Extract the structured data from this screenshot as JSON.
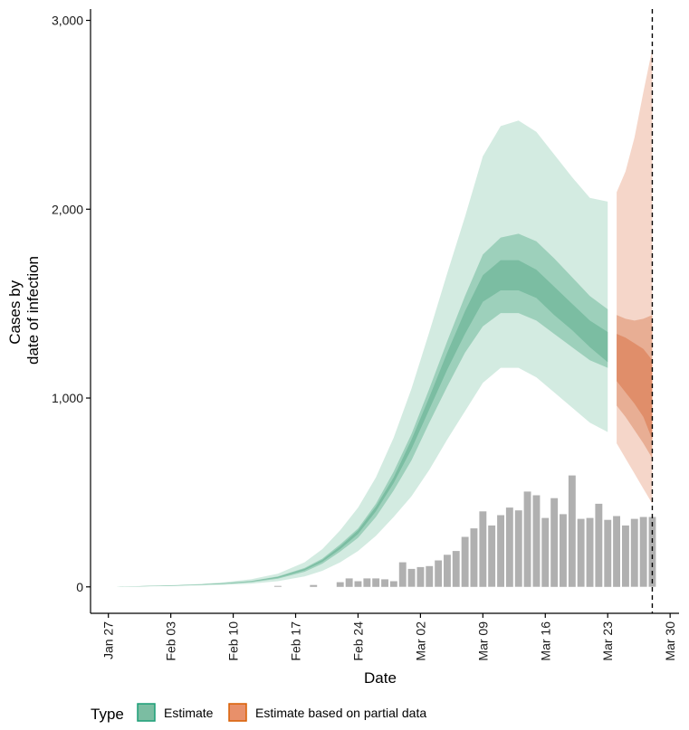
{
  "chart_data": {
    "type": "area",
    "xlabel": "Date",
    "ylabel_lines": [
      "Cases by",
      "date of infection"
    ],
    "x_domain": [
      "2020-01-25",
      "2020-03-31"
    ],
    "ylim": [
      -140,
      3060
    ],
    "y_ticks": [
      0,
      1000,
      2000,
      3000
    ],
    "y_tick_labels": [
      "0",
      "1,000",
      "2,000",
      "3,000"
    ],
    "x_ticks": [
      "2020-01-27",
      "2020-02-03",
      "2020-02-10",
      "2020-02-17",
      "2020-02-24",
      "2020-03-02",
      "2020-03-09",
      "2020-03-16",
      "2020-03-23",
      "2020-03-30"
    ],
    "x_tick_labels": [
      "Jan 27",
      "Feb 03",
      "Feb 10",
      "Feb 17",
      "Feb 24",
      "Mar 02",
      "Mar 09",
      "Mar 16",
      "Mar 23",
      "Mar 30"
    ],
    "vline_date": "2020-03-28",
    "colors": {
      "bars": "#b0b0b0",
      "estimate_outer": "#d3ebe1",
      "estimate_mid": "#9dd0bb",
      "estimate_inner": "#7bbda2",
      "estimate_legend_fill": "#7bbda2",
      "estimate_legend_border": "#1b9e77",
      "partial_outer": "#f5d6c9",
      "partial_mid": "#e8ae94",
      "partial_inner": "#e08e6a",
      "partial_legend_fill": "#e8906a",
      "partial_legend_border": "#d95f02"
    },
    "legend": {
      "title": "Type",
      "placement": "bottom",
      "items": [
        {
          "label": "Estimate",
          "key": "estimate"
        },
        {
          "label": "Estimate based on partial data",
          "key": "partial"
        }
      ]
    },
    "bars": {
      "dates": [
        "2020-02-15",
        "2020-02-19",
        "2020-02-22",
        "2020-02-23",
        "2020-02-24",
        "2020-02-25",
        "2020-02-26",
        "2020-02-27",
        "2020-02-28",
        "2020-02-29",
        "2020-03-01",
        "2020-03-02",
        "2020-03-03",
        "2020-03-04",
        "2020-03-05",
        "2020-03-06",
        "2020-03-07",
        "2020-03-08",
        "2020-03-09",
        "2020-03-10",
        "2020-03-11",
        "2020-03-12",
        "2020-03-13",
        "2020-03-14",
        "2020-03-15",
        "2020-03-16",
        "2020-03-17",
        "2020-03-18",
        "2020-03-19",
        "2020-03-20",
        "2020-03-21",
        "2020-03-22",
        "2020-03-23",
        "2020-03-24",
        "2020-03-25",
        "2020-03-26",
        "2020-03-27",
        "2020-03-28"
      ],
      "values": [
        5,
        10,
        25,
        45,
        30,
        45,
        45,
        40,
        30,
        130,
        95,
        105,
        110,
        140,
        170,
        190,
        265,
        310,
        400,
        325,
        380,
        420,
        405,
        505,
        485,
        365,
        470,
        385,
        590,
        360,
        365,
        440,
        355,
        375,
        325,
        360,
        370,
        370
      ]
    },
    "series": [
      {
        "name": "Estimate",
        "key": "estimate",
        "dates": [
          "2020-01-28",
          "2020-01-31",
          "2020-02-03",
          "2020-02-06",
          "2020-02-09",
          "2020-02-12",
          "2020-02-15",
          "2020-02-18",
          "2020-02-20",
          "2020-02-22",
          "2020-02-24",
          "2020-02-26",
          "2020-02-28",
          "2020-03-01",
          "2020-03-03",
          "2020-03-05",
          "2020-03-07",
          "2020-03-09",
          "2020-03-11",
          "2020-03-13",
          "2020-03-15",
          "2020-03-17",
          "2020-03-19",
          "2020-03-21",
          "2020-03-23"
        ],
        "outer_low": [
          0,
          2,
          4,
          7,
          11,
          17,
          30,
          55,
          85,
          130,
          190,
          270,
          370,
          480,
          620,
          780,
          930,
          1080,
          1160,
          1160,
          1110,
          1030,
          950,
          870,
          820
        ],
        "outer_high": [
          2,
          5,
          9,
          15,
          25,
          40,
          70,
          130,
          200,
          300,
          420,
          580,
          790,
          1050,
          1350,
          1660,
          1960,
          2280,
          2440,
          2470,
          2410,
          2290,
          2170,
          2060,
          2040
        ],
        "mid_low": [
          1,
          3,
          5,
          10,
          15,
          24,
          43,
          80,
          123,
          187,
          260,
          370,
          510,
          670,
          870,
          1060,
          1240,
          1380,
          1450,
          1450,
          1410,
          1340,
          1270,
          1200,
          1160
        ],
        "mid_high": [
          1,
          4,
          7,
          12,
          20,
          31,
          55,
          100,
          150,
          225,
          310,
          440,
          610,
          810,
          1050,
          1300,
          1540,
          1760,
          1850,
          1870,
          1830,
          1740,
          1640,
          1540,
          1470
        ],
        "inner_low": [
          1,
          3,
          6,
          11,
          17,
          28,
          48,
          88,
          133,
          200,
          280,
          400,
          550,
          730,
          940,
          1150,
          1340,
          1510,
          1570,
          1570,
          1530,
          1440,
          1360,
          1270,
          1190
        ],
        "inner_high": [
          1,
          4,
          7,
          12,
          19,
          30,
          52,
          95,
          143,
          215,
          300,
          425,
          580,
          780,
          1005,
          1240,
          1460,
          1650,
          1730,
          1730,
          1680,
          1590,
          1500,
          1410,
          1350
        ]
      },
      {
        "name": "Estimate based on partial data",
        "key": "partial",
        "dates": [
          "2020-03-24",
          "2020-03-25",
          "2020-03-26",
          "2020-03-27",
          "2020-03-28"
        ],
        "outer_low": [
          760,
          680,
          600,
          520,
          440
        ],
        "outer_high": [
          2090,
          2200,
          2380,
          2620,
          2850
        ],
        "mid_low": [
          960,
          900,
          830,
          760,
          680
        ],
        "mid_high": [
          1440,
          1420,
          1410,
          1420,
          1440
        ],
        "inner_low": [
          1090,
          1030,
          970,
          900,
          780
        ],
        "inner_high": [
          1340,
          1320,
          1290,
          1260,
          1200
        ]
      }
    ]
  }
}
